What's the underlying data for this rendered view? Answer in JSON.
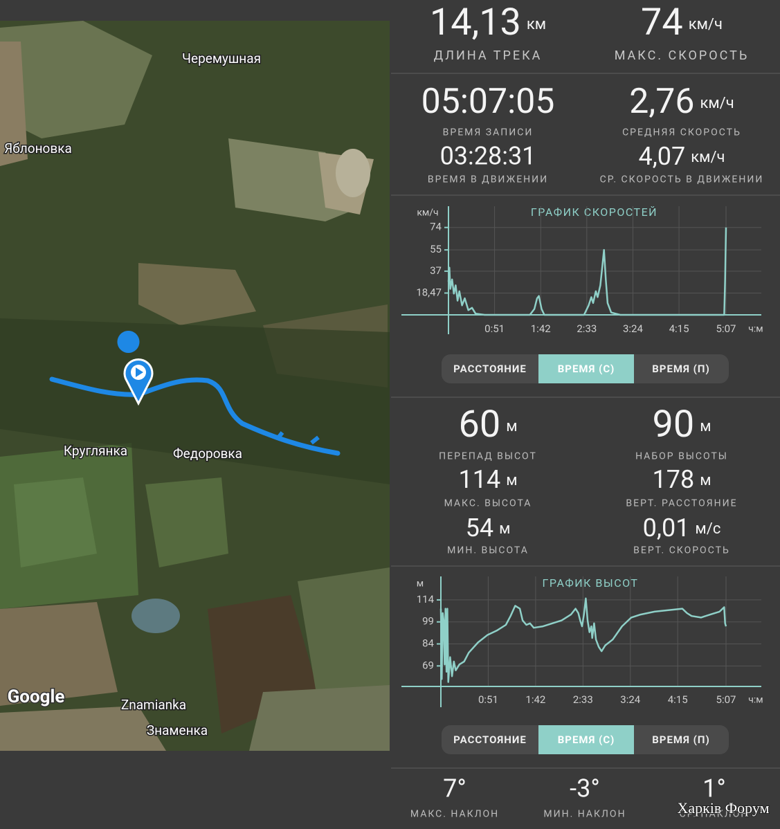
{
  "map": {
    "labels": [
      "Черемушная",
      "Яблоновка",
      "Круглянка",
      "Федоровка",
      "Znamianka",
      "Знаменка"
    ],
    "logo": "Google"
  },
  "stats": [
    {
      "value": "14,13",
      "unit": "км",
      "label": "ДЛИНА ТРЕКА"
    },
    {
      "value": "74",
      "unit": "км/ч",
      "label": "МАКС. СКОРОСТЬ"
    },
    {
      "value": "05:07:05",
      "label": "ВРЕМЯ ЗАПИСИ"
    },
    {
      "value": "03:28:31",
      "label": "ВРЕМЯ В ДВИЖЕНИИ"
    },
    {
      "value": "2,76",
      "unit": "км/ч",
      "label": "СРЕДНЯЯ СКОРОСТЬ"
    },
    {
      "value": "4,07",
      "unit": "км/ч",
      "label": "СР. СКОРОСТЬ В ДВИЖЕНИИ"
    },
    {
      "value": "60",
      "unit": "м",
      "label": "ПЕРЕПАД ВЫСОТ"
    },
    {
      "value": "114",
      "unit": "м",
      "label": "МАКС. ВЫСОТА"
    },
    {
      "value": "54",
      "unit": "м",
      "label": "МИН. ВЫСОТА"
    },
    {
      "value": "90",
      "unit": "м",
      "label": "НАБОР ВЫСОТЫ"
    },
    {
      "value": "178",
      "unit": "м",
      "label": "ВЕРТ. РАССТОЯНИЕ"
    },
    {
      "value": "0,01",
      "unit": "м/с",
      "label": "ВЕРТ. СКОРОСТЬ"
    },
    {
      "value": "7°",
      "label": "МАКС. НАКЛОН"
    },
    {
      "value": "-3°",
      "label": "МИН. НАКЛОН"
    },
    {
      "value": "1°",
      "label": "СР. НАКЛОН"
    }
  ],
  "controls": {
    "speed": [
      "РАССТОЯНИЕ",
      "ВРЕМЯ (С)",
      "ВРЕМЯ (П)"
    ],
    "altitude": [
      "РАССТОЯНИЕ",
      "ВРЕМЯ (С)",
      "ВРЕМЯ (П)"
    ]
  },
  "watermark": "Харків Форум",
  "chart_data": [
    {
      "type": "line",
      "title": "ГРАФИК СКОРОСТЕЙ",
      "y_label": "км/ч",
      "x_label": "ч:м",
      "color": "#8fd0c8",
      "grid": true,
      "x": [
        0,
        1,
        2,
        4,
        6,
        8,
        10,
        12,
        15,
        18,
        22,
        26,
        30,
        40,
        60,
        90,
        95,
        98,
        100,
        103,
        106,
        150,
        155,
        158,
        160,
        163,
        165,
        168,
        170,
        172,
        174,
        176,
        180,
        190,
        250,
        300,
        305,
        306,
        307
      ],
      "values": [
        28,
        40,
        22,
        30,
        18,
        25,
        12,
        20,
        8,
        14,
        4,
        6,
        1,
        0,
        0,
        0,
        5,
        14,
        16,
        5,
        0,
        0,
        8,
        15,
        10,
        20,
        15,
        25,
        40,
        55,
        30,
        10,
        2,
        0,
        0,
        0,
        0,
        30,
        74
      ],
      "xlim": [
        0,
        307
      ],
      "ylim": [
        0,
        92
      ],
      "xticks": [
        {
          "value": 51,
          "label": "0:51"
        },
        {
          "value": 102,
          "label": "1:42"
        },
        {
          "value": 153,
          "label": "2:33"
        },
        {
          "value": 204,
          "label": "3:24"
        },
        {
          "value": 255,
          "label": "4:15"
        },
        {
          "value": 307,
          "label": "5:07"
        }
      ],
      "yticks": [
        {
          "value": 18.47,
          "label": "18,47"
        },
        37,
        55,
        74
      ]
    },
    {
      "type": "line",
      "title": "ГРАФИК ВЫСОТ",
      "y_label": "м",
      "x_label": "ч:м",
      "color": "#8fd0c8",
      "grid": true,
      "x": [
        0,
        1,
        2,
        3,
        4,
        5,
        6,
        7,
        8,
        10,
        12,
        14,
        16,
        20,
        25,
        30,
        40,
        50,
        60,
        70,
        75,
        80,
        85,
        88,
        92,
        96,
        100,
        110,
        120,
        130,
        140,
        145,
        148,
        150,
        152,
        154,
        156,
        158,
        160,
        162,
        163,
        165,
        167,
        170,
        173,
        177,
        185,
        195,
        205,
        215,
        230,
        245,
        260,
        265,
        270,
        280,
        290,
        300,
        305,
        306,
        307
      ],
      "values": [
        108,
        60,
        105,
        100,
        70,
        108,
        65,
        108,
        58,
        75,
        62,
        72,
        66,
        70,
        72,
        78,
        85,
        90,
        93,
        97,
        103,
        110,
        108,
        100,
        97,
        98,
        95,
        96,
        98,
        100,
        104,
        108,
        105,
        100,
        96,
        104,
        115,
        100,
        92,
        96,
        88,
        98,
        87,
        82,
        79,
        83,
        87,
        96,
        102,
        104,
        106,
        107,
        108,
        105,
        103,
        102,
        104,
        106,
        109,
        98,
        96
      ],
      "xlim": [
        0,
        307
      ],
      "ylim": [
        55,
        130
      ],
      "xticks": [
        {
          "value": 51,
          "label": "0:51"
        },
        {
          "value": 102,
          "label": "1:42"
        },
        {
          "value": 153,
          "label": "2:33"
        },
        {
          "value": 204,
          "label": "3:24"
        },
        {
          "value": 255,
          "label": "4:15"
        },
        {
          "value": 307,
          "label": "5:07"
        }
      ],
      "yticks": [
        69,
        84,
        99,
        114
      ]
    }
  ]
}
